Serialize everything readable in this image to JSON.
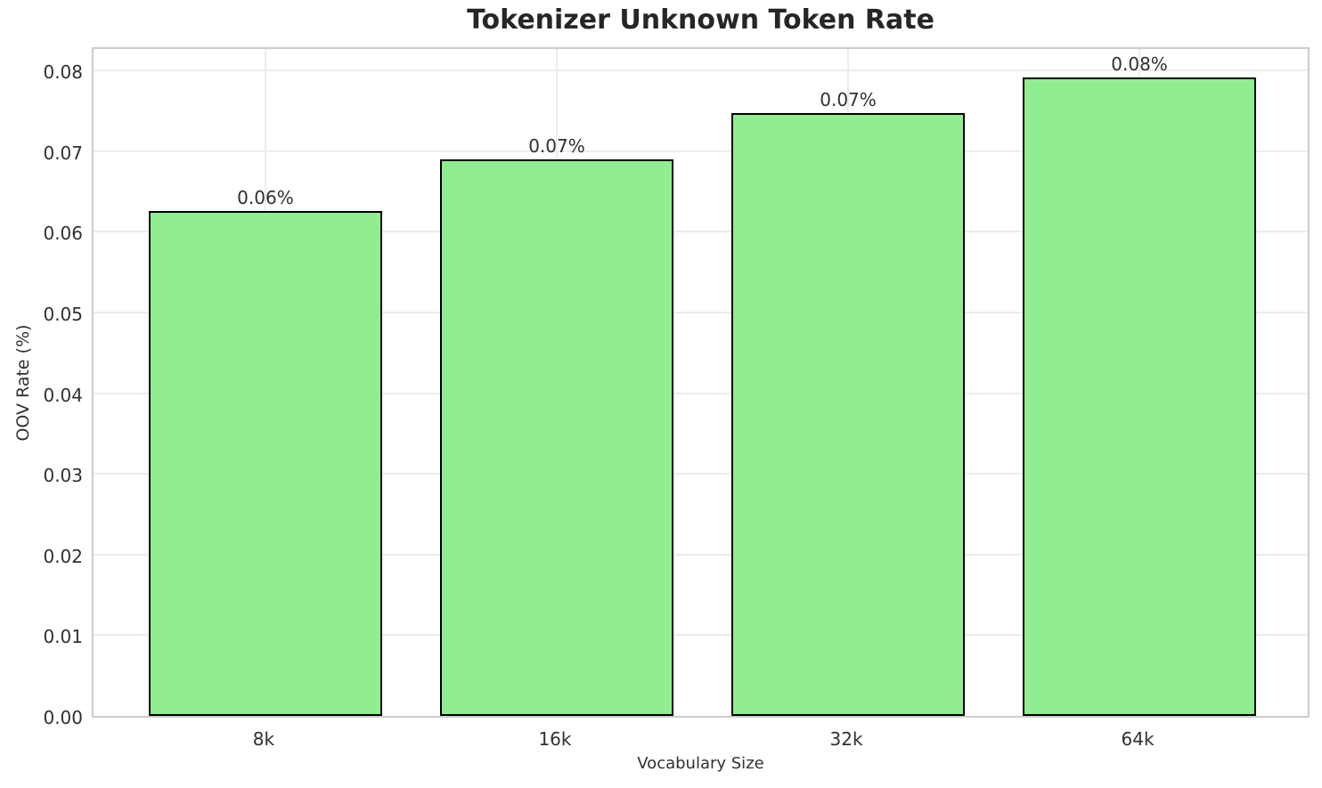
{
  "chart_data": {
    "type": "bar",
    "title": "Tokenizer Unknown Token Rate",
    "xlabel": "Vocabulary Size",
    "ylabel": "OOV Rate (%)",
    "categories": [
      "8k",
      "16k",
      "32k",
      "64k"
    ],
    "values": [
      0.0626,
      0.069,
      0.0747,
      0.0791
    ],
    "bar_labels": [
      "0.06%",
      "0.07%",
      "0.07%",
      "0.08%"
    ],
    "yticks": [
      0.0,
      0.01,
      0.02,
      0.03,
      0.04,
      0.05,
      0.06,
      0.07,
      0.08
    ],
    "ytick_labels": [
      "0.00",
      "0.01",
      "0.02",
      "0.03",
      "0.04",
      "0.05",
      "0.06",
      "0.07",
      "0.08"
    ],
    "ylim": [
      0,
      0.0831
    ],
    "grid": true,
    "legend": null,
    "colors": {
      "bar_fill": "#90EE90",
      "bar_edge": "#000000",
      "grid": "#ececec",
      "spine": "#cccccc",
      "text": "#303030",
      "title": "#262626",
      "background": "#ffffff"
    }
  }
}
